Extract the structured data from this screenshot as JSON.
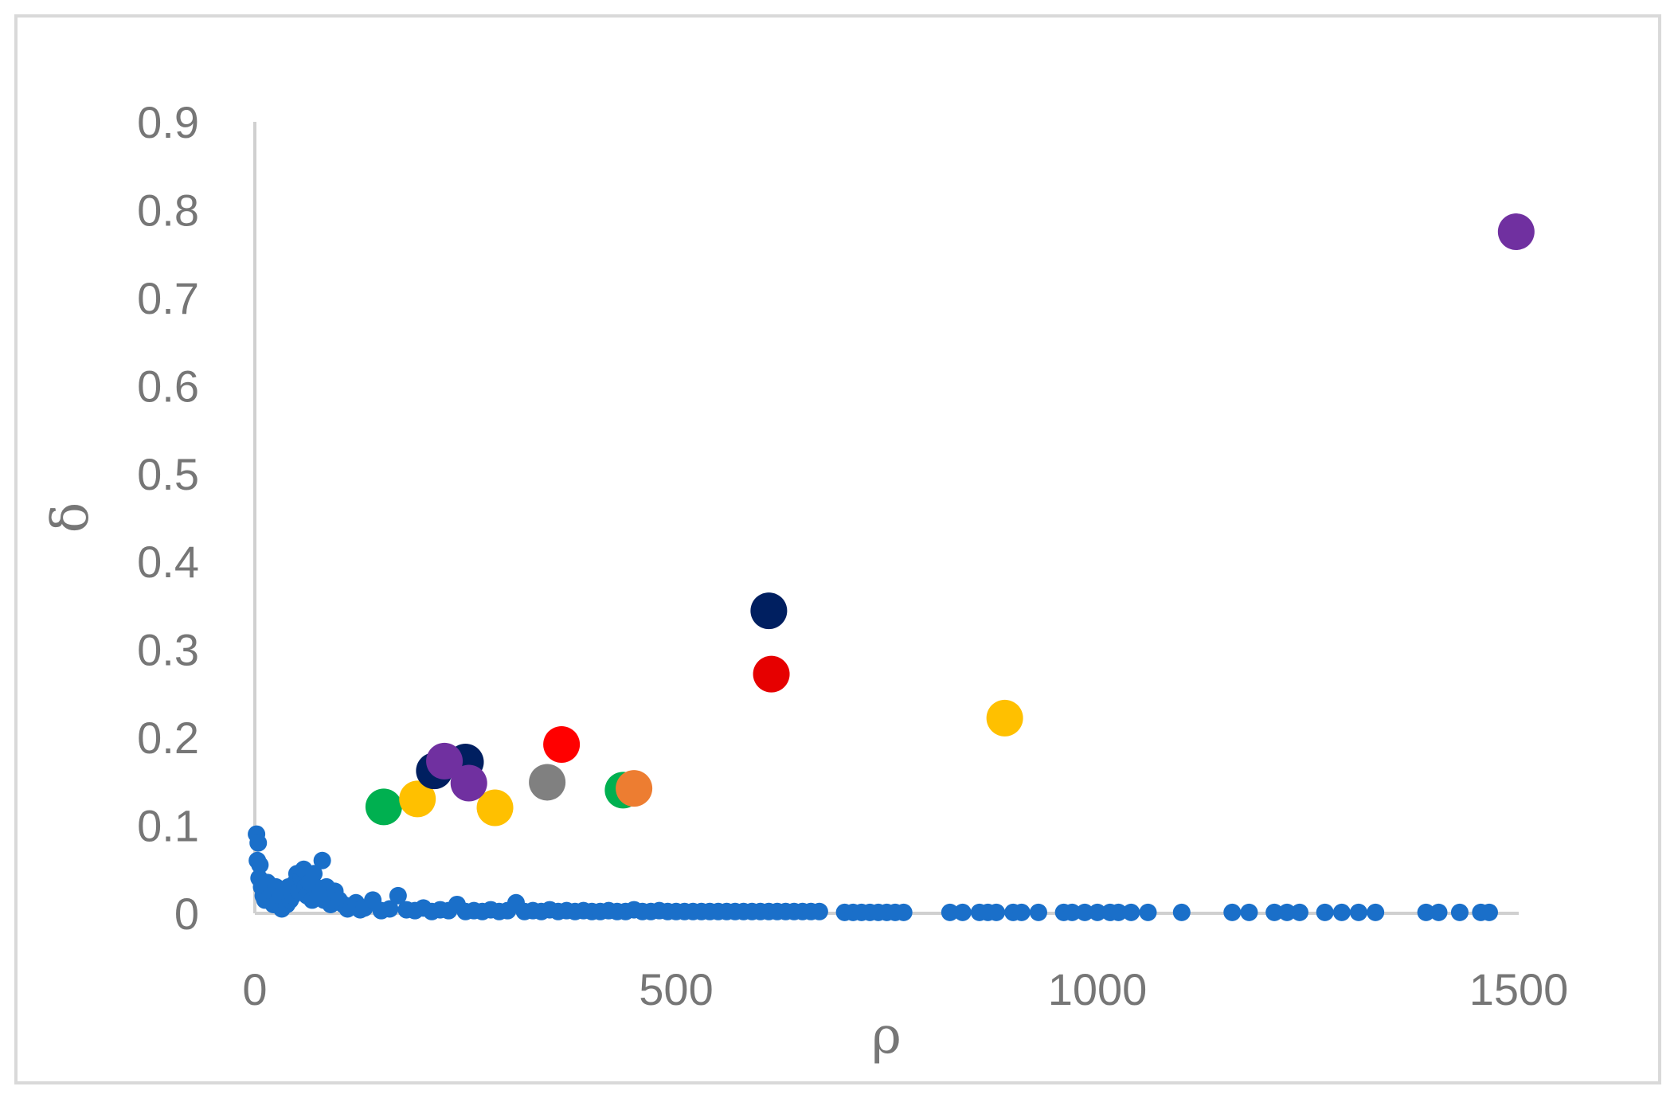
{
  "chart_data": {
    "type": "scatter",
    "xlabel": "ρ",
    "ylabel": "δ",
    "xlim": [
      0,
      1500
    ],
    "ylim": [
      0,
      0.9
    ],
    "x_ticks": [
      "0",
      "500",
      "1000",
      "1500"
    ],
    "y_ticks": [
      "0",
      "0.1",
      "0.2",
      "0.3",
      "0.4",
      "0.5",
      "0.6",
      "0.7",
      "0.8",
      "0.9"
    ],
    "grid": false,
    "legend": "none",
    "series": [
      {
        "color": "#1a6fc9",
        "marker_size": "small",
        "points": [
          [
            2,
            0.09
          ],
          [
            4,
            0.08
          ],
          [
            3,
            0.06
          ],
          [
            6,
            0.055
          ],
          [
            5,
            0.04
          ],
          [
            8,
            0.03
          ],
          [
            10,
            0.02
          ],
          [
            12,
            0.015
          ],
          [
            15,
            0.035
          ],
          [
            18,
            0.02
          ],
          [
            20,
            0.025
          ],
          [
            22,
            0.01
          ],
          [
            25,
            0.03
          ],
          [
            28,
            0.015
          ],
          [
            30,
            0.02
          ],
          [
            32,
            0.005
          ],
          [
            35,
            0.025
          ],
          [
            38,
            0.01
          ],
          [
            40,
            0.03
          ],
          [
            42,
            0.015
          ],
          [
            45,
            0.02
          ],
          [
            48,
            0.035
          ],
          [
            50,
            0.045
          ],
          [
            52,
            0.025
          ],
          [
            55,
            0.04
          ],
          [
            58,
            0.05
          ],
          [
            60,
            0.03
          ],
          [
            62,
            0.02
          ],
          [
            65,
            0.035
          ],
          [
            68,
            0.015
          ],
          [
            70,
            0.045
          ],
          [
            72,
            0.03
          ],
          [
            75,
            0.02
          ],
          [
            78,
            0.025
          ],
          [
            80,
            0.06
          ],
          [
            82,
            0.015
          ],
          [
            85,
            0.03
          ],
          [
            88,
            0.02
          ],
          [
            90,
            0.01
          ],
          [
            95,
            0.025
          ],
          [
            100,
            0.015
          ],
          [
            105,
            0.01
          ],
          [
            110,
            0.005
          ],
          [
            115,
            0.008
          ],
          [
            120,
            0.012
          ],
          [
            125,
            0.004
          ],
          [
            130,
            0.006
          ],
          [
            140,
            0.015
          ],
          [
            150,
            0.003
          ],
          [
            160,
            0.005
          ],
          [
            170,
            0.02
          ],
          [
            180,
            0.004
          ],
          [
            190,
            0.003
          ],
          [
            200,
            0.006
          ],
          [
            210,
            0.002
          ],
          [
            220,
            0.004
          ],
          [
            230,
            0.003
          ],
          [
            240,
            0.01
          ],
          [
            250,
            0.002
          ],
          [
            260,
            0.003
          ],
          [
            270,
            0.002
          ],
          [
            280,
            0.004
          ],
          [
            290,
            0.002
          ],
          [
            300,
            0.003
          ],
          [
            310,
            0.012
          ],
          [
            320,
            0.002
          ],
          [
            330,
            0.003
          ],
          [
            340,
            0.002
          ],
          [
            350,
            0.004
          ],
          [
            360,
            0.002
          ],
          [
            370,
            0.003
          ],
          [
            380,
            0.002
          ],
          [
            390,
            0.003
          ],
          [
            400,
            0.002
          ],
          [
            410,
            0.002
          ],
          [
            420,
            0.003
          ],
          [
            430,
            0.002
          ],
          [
            440,
            0.002
          ],
          [
            450,
            0.004
          ],
          [
            460,
            0.002
          ],
          [
            470,
            0.002
          ],
          [
            480,
            0.003
          ],
          [
            490,
            0.002
          ],
          [
            500,
            0.002
          ],
          [
            510,
            0.002
          ],
          [
            520,
            0.002
          ],
          [
            530,
            0.002
          ],
          [
            540,
            0.002
          ],
          [
            550,
            0.002
          ],
          [
            560,
            0.002
          ],
          [
            570,
            0.002
          ],
          [
            580,
            0.002
          ],
          [
            590,
            0.002
          ],
          [
            600,
            0.002
          ],
          [
            610,
            0.002
          ],
          [
            620,
            0.002
          ],
          [
            630,
            0.002
          ],
          [
            640,
            0.002
          ],
          [
            650,
            0.002
          ],
          [
            660,
            0.002
          ],
          [
            670,
            0.002
          ],
          [
            700,
            0.001
          ],
          [
            710,
            0.001
          ],
          [
            720,
            0.001
          ],
          [
            730,
            0.001
          ],
          [
            740,
            0.001
          ],
          [
            750,
            0.001
          ],
          [
            760,
            0.001
          ],
          [
            770,
            0.001
          ],
          [
            825,
            0.001
          ],
          [
            840,
            0.001
          ],
          [
            860,
            0.001
          ],
          [
            870,
            0.001
          ],
          [
            880,
            0.001
          ],
          [
            900,
            0.001
          ],
          [
            910,
            0.001
          ],
          [
            930,
            0.001
          ],
          [
            960,
            0.001
          ],
          [
            970,
            0.001
          ],
          [
            985,
            0.001
          ],
          [
            1000,
            0.001
          ],
          [
            1015,
            0.001
          ],
          [
            1025,
            0.001
          ],
          [
            1040,
            0.001
          ],
          [
            1060,
            0.001
          ],
          [
            1100,
            0.001
          ],
          [
            1160,
            0.001
          ],
          [
            1180,
            0.001
          ],
          [
            1210,
            0.001
          ],
          [
            1225,
            0.001
          ],
          [
            1240,
            0.001
          ],
          [
            1270,
            0.001
          ],
          [
            1290,
            0.001
          ],
          [
            1310,
            0.001
          ],
          [
            1330,
            0.001
          ],
          [
            1390,
            0.001
          ],
          [
            1405,
            0.001
          ],
          [
            1430,
            0.001
          ],
          [
            1455,
            0.001
          ],
          [
            1465,
            0.001
          ]
        ]
      },
      {
        "color": "#00b050",
        "marker_size": "large",
        "points": [
          [
            153,
            0.121
          ],
          [
            437,
            0.14
          ]
        ]
      },
      {
        "color": "#ffc000",
        "marker_size": "large",
        "points": [
          [
            193,
            0.13
          ],
          [
            285,
            0.12
          ],
          [
            890,
            0.222
          ]
        ]
      },
      {
        "color": "#001f60",
        "marker_size": "large",
        "points": [
          [
            250,
            0.172
          ],
          [
            213,
            0.162
          ],
          [
            610,
            0.344
          ]
        ]
      },
      {
        "color": "#7030a0",
        "marker_size": "large",
        "points": [
          [
            225,
            0.173
          ],
          [
            254,
            0.148
          ],
          [
            1497,
            0.775
          ]
        ]
      },
      {
        "color": "#808080",
        "marker_size": "large",
        "points": [
          [
            347,
            0.149
          ]
        ]
      },
      {
        "color": "#ff0000",
        "marker_size": "large",
        "points": [
          [
            364,
            0.192
          ]
        ]
      },
      {
        "color": "#e60000",
        "marker_size": "large",
        "points": [
          [
            613,
            0.272
          ]
        ]
      },
      {
        "color": "#ed7d31",
        "marker_size": "large",
        "points": [
          [
            450,
            0.142
          ]
        ]
      }
    ]
  }
}
